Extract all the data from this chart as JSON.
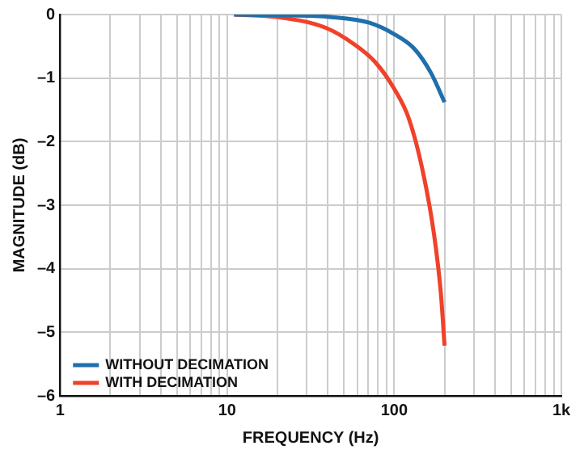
{
  "chart_data": {
    "type": "line",
    "xlabel": "FREQUENCY (Hz)",
    "ylabel": "MAGNITUDE (dB)",
    "xlim": [
      1,
      1000
    ],
    "ylim": [
      -6,
      0
    ],
    "xticks": [
      1,
      {
        "value": 2,
        "label": null
      },
      {
        "value": 3,
        "label": null
      },
      {
        "value": 4,
        "label": null
      },
      {
        "value": 5,
        "label": null
      },
      {
        "value": 6,
        "label": null
      },
      {
        "value": 7,
        "label": null
      },
      {
        "value": 8,
        "label": null
      },
      {
        "value": 9,
        "label": null
      },
      10,
      {
        "value": 20,
        "label": null
      },
      {
        "value": 30,
        "label": null
      },
      {
        "value": 40,
        "label": null
      },
      {
        "value": 50,
        "label": null
      },
      {
        "value": 60,
        "label": null
      },
      {
        "value": 70,
        "label": null
      },
      {
        "value": 80,
        "label": null
      },
      {
        "value": 90,
        "label": null
      },
      100,
      {
        "value": 200,
        "label": null
      },
      {
        "value": 300,
        "label": null
      },
      {
        "value": 400,
        "label": null
      },
      {
        "value": 500,
        "label": null
      },
      {
        "value": 600,
        "label": null
      },
      {
        "value": 700,
        "label": null
      },
      {
        "value": 800,
        "label": null
      },
      {
        "value": 900,
        "label": null
      },
      {
        "value": 1000,
        "label": "1k"
      }
    ],
    "yticks": [
      {
        "value": -6,
        "label": "–6"
      },
      {
        "value": -5,
        "label": "–5"
      },
      {
        "value": -4,
        "label": "–4"
      },
      {
        "value": -3,
        "label": "–3"
      },
      {
        "value": -2,
        "label": "–2"
      },
      {
        "value": -1,
        "label": "–1"
      },
      0
    ],
    "log": "x",
    "grid": true,
    "legend": "bottom left",
    "marker": "none",
    "line_style": "solid",
    "series": [
      {
        "name": "WITHOUT DECIMATION",
        "color": "#1f6fad",
        "x": [
          11,
          20,
          42,
          71,
          100,
          132,
          166,
          200
        ],
        "values": [
          0,
          -0.01,
          -0.04,
          -0.13,
          -0.31,
          -0.54,
          -0.92,
          -1.38
        ]
      },
      {
        "name": "WITH DECIMATION",
        "color": "#f0412a",
        "x": [
          11,
          20,
          39,
          57,
          77,
          100,
          122,
          148,
          173,
          190,
          200
        ],
        "values": [
          0,
          -0.04,
          -0.21,
          -0.46,
          -0.75,
          -1.17,
          -1.63,
          -2.46,
          -3.46,
          -4.38,
          -5.21
        ]
      }
    ]
  }
}
